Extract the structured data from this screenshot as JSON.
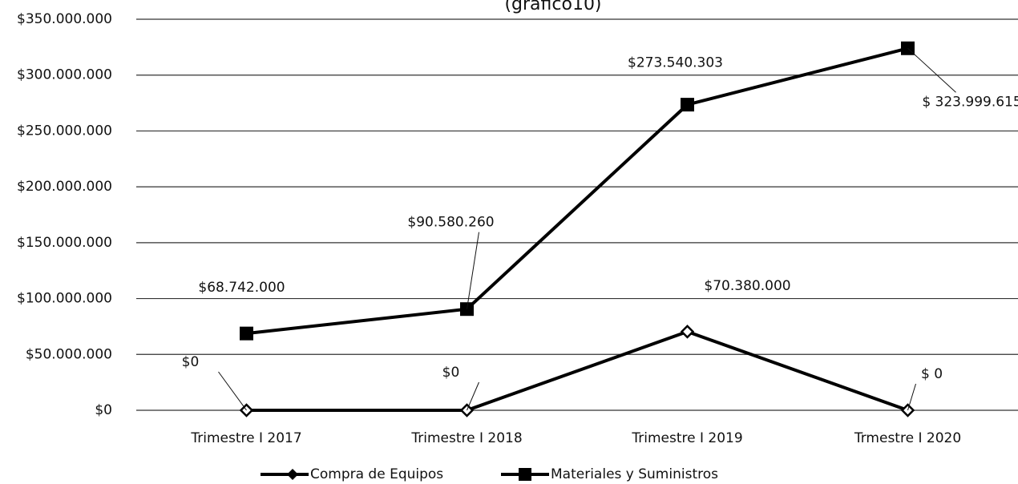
{
  "chart_data": {
    "type": "line",
    "title": "(grafico10)",
    "categories": [
      "Trimestre I 2017",
      "Trimestre I 2018",
      "Trimestre I 2019",
      "Trmestre I 2020"
    ],
    "series": [
      {
        "name": "Compra de Equipos",
        "color": "#000000",
        "marker": "diamond",
        "values": [
          0,
          0,
          70380000,
          0
        ],
        "value_labels": [
          "$0",
          "$0",
          "$70.380.000",
          "$ 0"
        ]
      },
      {
        "name": "Materiales y Suministros",
        "color": "#000000",
        "marker": "square",
        "values": [
          68742000,
          90580260,
          273540303,
          323999615
        ],
        "value_labels": [
          "$68.742.000",
          "$90.580.260",
          "$273.540.303",
          "$ 323.999.615"
        ]
      }
    ],
    "ylim": [
      0,
      350000000
    ],
    "yticks": [
      {
        "value": 0,
        "label": "$0"
      },
      {
        "value": 50000000,
        "label": "$50.000.000"
      },
      {
        "value": 100000000,
        "label": "$100.000.000"
      },
      {
        "value": 150000000,
        "label": "$150.000.000"
      },
      {
        "value": 200000000,
        "label": "$200.000.000"
      },
      {
        "value": 250000000,
        "label": "$250.000.000"
      },
      {
        "value": 300000000,
        "label": "$300.000.000"
      },
      {
        "value": 350000000,
        "label": "$350.000.000"
      }
    ],
    "grid": true,
    "legend": "bottom"
  }
}
